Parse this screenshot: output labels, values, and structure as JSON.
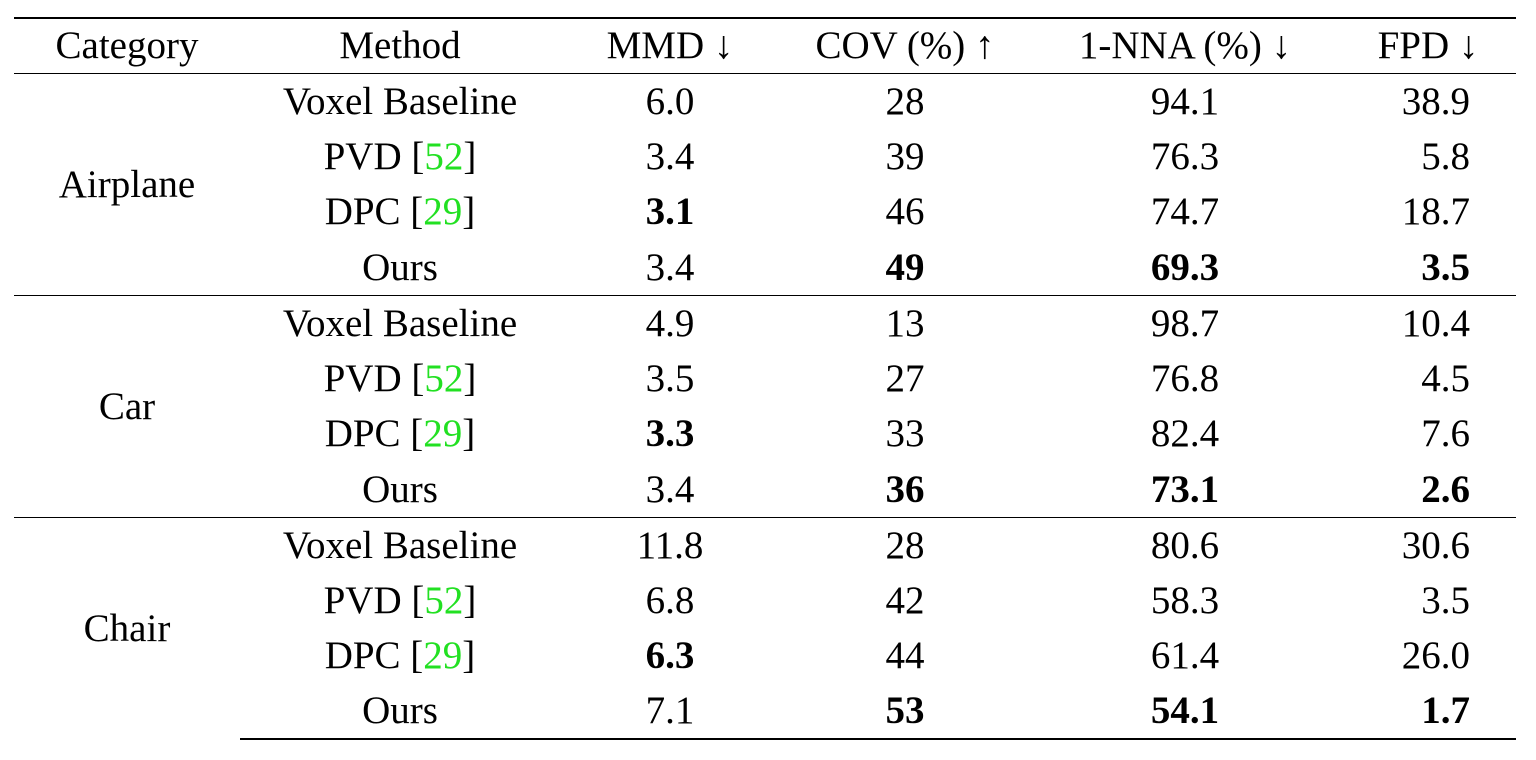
{
  "table": {
    "header": [
      "Category",
      "Method",
      "MMD ↓",
      "COV (%) ↑",
      "1-NNA (%) ↓",
      "FPD ↓"
    ],
    "groups": [
      {
        "category": "Airplane",
        "rows": [
          {
            "method": "Voxel Baseline",
            "values": [
              "6.0",
              "28",
              "94.1",
              "38.9"
            ],
            "bold": []
          },
          {
            "method": "PVD [52]",
            "values": [
              "3.4",
              "39",
              "76.3",
              "5.8"
            ],
            "bold": []
          },
          {
            "method": "DPC [29]",
            "values": [
              "3.1",
              "46",
              "74.7",
              "18.7"
            ],
            "bold": [
              0
            ]
          },
          {
            "method": "Ours",
            "values": [
              "3.4",
              "49",
              "69.3",
              "3.5"
            ],
            "bold": [
              1,
              2,
              3
            ]
          }
        ]
      },
      {
        "category": "Car",
        "rows": [
          {
            "method": "Voxel Baseline",
            "values": [
              "4.9",
              "13",
              "98.7",
              "10.4"
            ],
            "bold": []
          },
          {
            "method": "PVD [52]",
            "values": [
              "3.5",
              "27",
              "76.8",
              "4.5"
            ],
            "bold": []
          },
          {
            "method": "DPC [29]",
            "values": [
              "3.3",
              "33",
              "82.4",
              "7.6"
            ],
            "bold": [
              0
            ]
          },
          {
            "method": "Ours",
            "values": [
              "3.4",
              "36",
              "73.1",
              "2.6"
            ],
            "bold": [
              1,
              2,
              3
            ]
          }
        ]
      },
      {
        "category": "Chair",
        "rows": [
          {
            "method": "Voxel Baseline",
            "values": [
              "11.8",
              "28",
              "80.6",
              "30.6"
            ],
            "bold": []
          },
          {
            "method": "PVD [52]",
            "values": [
              "6.8",
              "42",
              "58.3",
              "3.5"
            ],
            "bold": []
          },
          {
            "method": "DPC [29]",
            "values": [
              "6.3",
              "44",
              "61.4",
              "26.0"
            ],
            "bold": [
              0
            ]
          },
          {
            "method": "Ours",
            "values": [
              "7.1",
              "53",
              "54.1",
              "1.7"
            ],
            "bold": [
              1,
              2,
              3
            ]
          }
        ]
      }
    ],
    "cite_color": "#22e022"
  }
}
